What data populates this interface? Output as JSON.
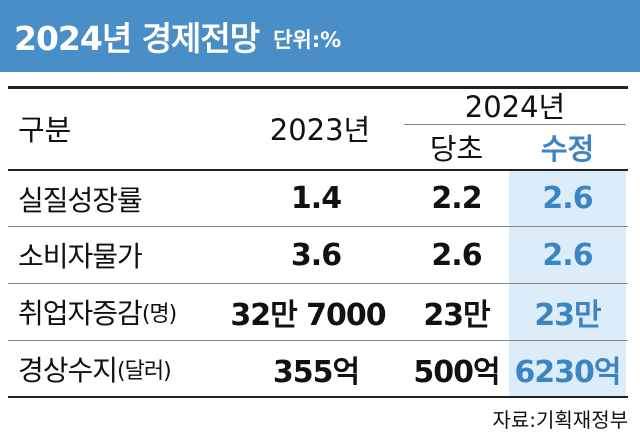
{
  "header": {
    "title": "2024년 경제전망",
    "unit": "단위:%"
  },
  "colors": {
    "header_bg": "#4a8ec7",
    "highlight_bg": "#dcecf8",
    "highlight_text": "#3b85c3"
  },
  "table": {
    "col_category": "구분",
    "col_2023": "2023년",
    "col_2024": "2024년",
    "sub_initial": "당초",
    "sub_revised": "수정",
    "rows": [
      {
        "label": "실질성장률",
        "label_unit": "",
        "v2023": "1.4",
        "initial": "2.2",
        "revised": "2.6"
      },
      {
        "label": "소비자물가",
        "label_unit": "",
        "v2023": "3.6",
        "initial": "2.6",
        "revised": "2.6"
      },
      {
        "label": "취업자증감",
        "label_unit": "(명)",
        "v2023": "32만 7000",
        "initial": "23만",
        "revised": "23만"
      },
      {
        "label": "경상수지",
        "label_unit": "(달러)",
        "v2023": "355억",
        "initial": "500억",
        "revised": "6230억"
      }
    ]
  },
  "source": "자료:기획재정부"
}
